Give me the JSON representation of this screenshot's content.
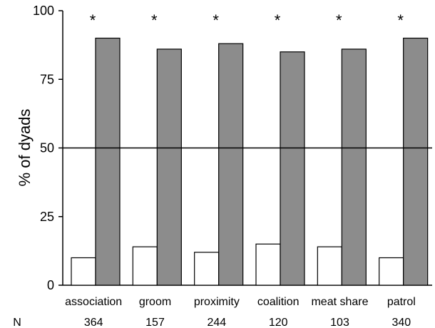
{
  "chart_data": {
    "type": "bar",
    "title": "",
    "xlabel": "",
    "ylabel": "% of dyads",
    "ylim": [
      0,
      100
    ],
    "yticks": [
      0,
      25,
      50,
      75,
      100
    ],
    "reference_line": 50,
    "categories": [
      "association",
      "groom",
      "proximity",
      "coalition",
      "meat share",
      "patrol"
    ],
    "series": [
      {
        "values": [
          10,
          14,
          12,
          15,
          14,
          10
        ],
        "color": "#ffffff"
      },
      {
        "values": [
          90,
          86,
          88,
          85,
          86,
          90
        ],
        "color": "#8c8c8c"
      }
    ],
    "significance_marker": "*",
    "n_label": "N",
    "n_values": [
      "364",
      "157",
      "244",
      "120",
      "103",
      "340"
    ]
  }
}
